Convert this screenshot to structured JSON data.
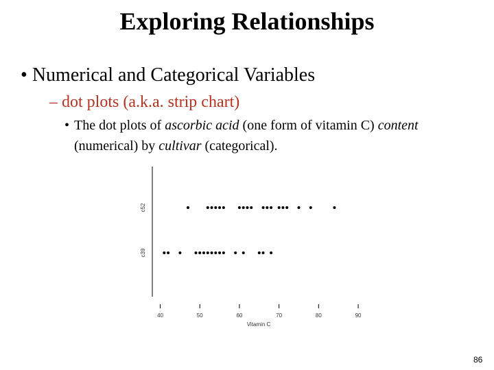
{
  "title": "Exploring Relationships",
  "bullet": "Numerical and Categorical Variables",
  "sub_bullet": "dot plots (a.k.a. strip chart)",
  "sub_sub_bullet": [
    {
      "text": "The dot plots of ",
      "italic": false
    },
    {
      "text": "ascorbic acid",
      "italic": true
    },
    {
      "text": " (one form of vitamin C) ",
      "italic": false
    },
    {
      "text": "content",
      "italic": true
    },
    {
      "text": " (numerical) by ",
      "italic": false
    },
    {
      "text": "cultivar",
      "italic": true
    },
    {
      "text": " (categorical).",
      "italic": false
    }
  ],
  "page_number": "86",
  "chart_data": {
    "type": "strip",
    "xlabel": "Vitamin C",
    "series": [
      {
        "name": "c52",
        "values": [
          47,
          52,
          53,
          54,
          55,
          56,
          60,
          61,
          62,
          63,
          66,
          67,
          68,
          70,
          71,
          72,
          75,
          78,
          84
        ]
      },
      {
        "name": "c39",
        "values": [
          41,
          42,
          45,
          49,
          50,
          51,
          52,
          53,
          54,
          55,
          56,
          59,
          61,
          65,
          66,
          68
        ]
      }
    ],
    "xlim": [
      38,
      92
    ],
    "xticks": [
      40,
      50,
      60,
      70,
      80,
      90
    ],
    "color": "#000000"
  }
}
